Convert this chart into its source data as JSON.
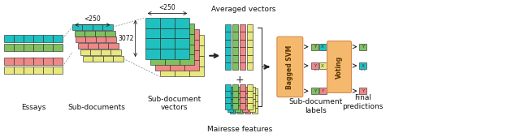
{
  "bg_color": "#ffffff",
  "colors": {
    "teal": "#20c0c0",
    "green": "#80c060",
    "salmon": "#f08888",
    "yellow": "#e8e880",
    "orange_box": "#f5b96e",
    "dark": "#222222",
    "gray": "#888888",
    "text": "#111111",
    "border_orange": "#d4884e"
  },
  "labels": {
    "essays": "Essays",
    "subdocs": "Sub-documents",
    "subvec": "Sub-document\nvectors",
    "avg_vec": "Averaged vectors",
    "mairesse": "Mairesse features",
    "bagged": "Bagged SVM",
    "sublabels": "Sub-document\nlabels",
    "voting": "Voting",
    "final": "Final\npredictions",
    "lt250_1": "<250",
    "lt250_2": "<250",
    "dim3072": "3072"
  }
}
